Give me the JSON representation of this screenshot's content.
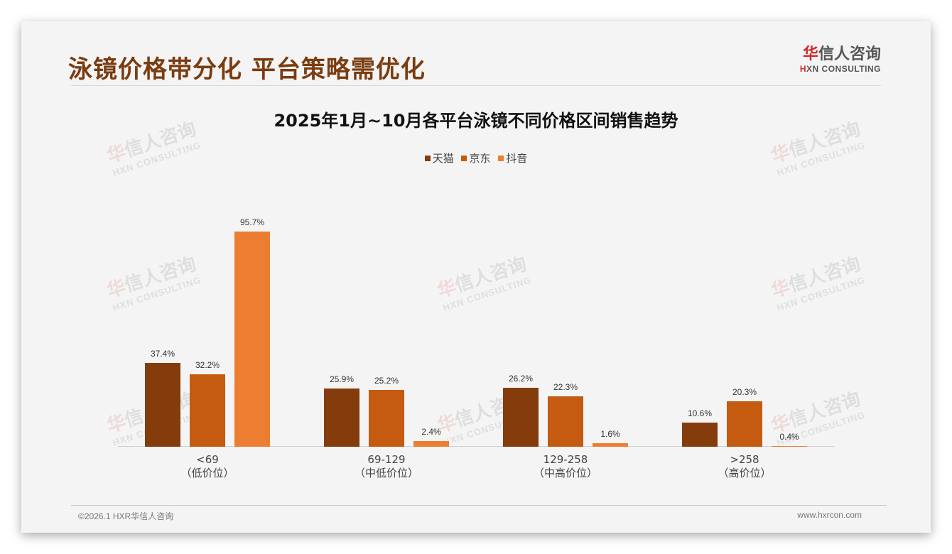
{
  "slide": {
    "title": "泳镜价格带分化 平台策略需优化",
    "logo": {
      "cn_red": "华",
      "cn_rest": "信人咨询",
      "en_red": "H",
      "en_rest": "XN CONSULTING"
    },
    "watermark": {
      "cn_red": "华",
      "cn_rest": "信人咨询",
      "en": "HXN CONSULTING"
    },
    "footer": {
      "left": "©2026.1 HXR华信人咨询",
      "right": "www.hxrcon.com"
    }
  },
  "colors": {
    "tmall": "#843c0c",
    "jd": "#c55a11",
    "douyin": "#ed7d31",
    "title": "#7a3c10"
  },
  "chart_data": {
    "type": "bar",
    "title": "2025年1月~10月各平台泳镜不同价格区间销售趋势",
    "categories": [
      "<69",
      "69-129",
      "129-258",
      ">258"
    ],
    "category_sublabels": [
      "（低价位）",
      "（中低价位）",
      "（中高价位）",
      "（高价位）"
    ],
    "series": [
      {
        "name": "天猫",
        "values": [
          37.4,
          25.9,
          26.2,
          10.6
        ],
        "labels": [
          "37.4%",
          "25.9%",
          "26.2%",
          "10.6%"
        ]
      },
      {
        "name": "京东",
        "values": [
          32.2,
          25.2,
          22.3,
          20.3
        ],
        "labels": [
          "32.2%",
          "25.2%",
          "22.3%",
          "20.3%"
        ]
      },
      {
        "name": "抖音",
        "values": [
          95.7,
          2.4,
          1.6,
          0.4
        ],
        "labels": [
          "95.7%",
          "2.4%",
          "1.6%",
          "0.4%"
        ]
      }
    ],
    "xlabel": "",
    "ylabel": "",
    "unit": "%",
    "ylim": [
      0,
      100
    ],
    "grid": false,
    "legend_position": "top"
  }
}
